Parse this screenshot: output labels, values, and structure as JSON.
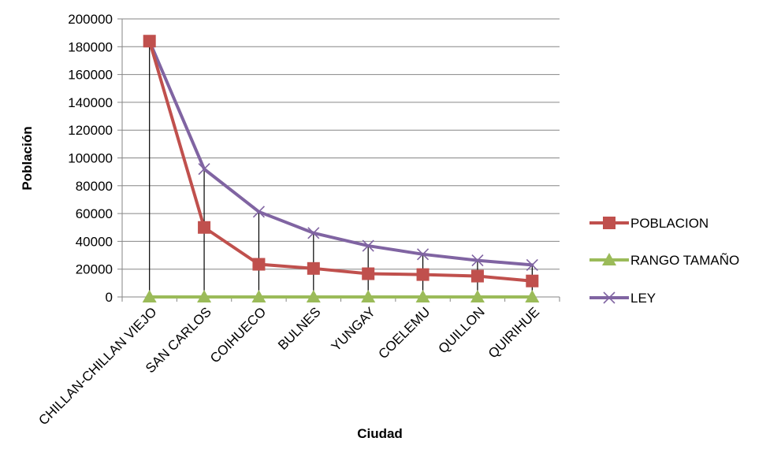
{
  "chart_data": {
    "type": "line",
    "title": "",
    "xlabel": "Ciudad",
    "ylabel": "Población",
    "categories": [
      "CHILLAN-CHILLAN VIEJO",
      "SAN CARLOS",
      "COIHUECO",
      "BULNES",
      "YUNGAY",
      "COELEMU",
      "QUILLON",
      "QUIRIHUE"
    ],
    "ylim": [
      0,
      200000
    ],
    "yticks": [
      "0",
      "20000",
      "40000",
      "60000",
      "80000",
      "100000",
      "120000",
      "140000",
      "160000",
      "180000",
      "200000"
    ],
    "grid": "horizontal",
    "legend_position": "right",
    "drop_lines": true,
    "series": [
      {
        "name": "POBLACION",
        "values": [
          184000,
          50000,
          23500,
          20500,
          16700,
          16100,
          15000,
          11500
        ],
        "color": "#c0504d",
        "marker": "square"
      },
      {
        "name": "RANGO TAMAÑO",
        "values": [
          0,
          0,
          0,
          0,
          0,
          0,
          0,
          0
        ],
        "color": "#9bbb59",
        "marker": "triangle"
      },
      {
        "name": "LEY",
        "values": [
          184000,
          92000,
          61300,
          46000,
          36800,
          30700,
          26300,
          23000
        ],
        "color": "#8064a2",
        "marker": "x"
      }
    ]
  }
}
